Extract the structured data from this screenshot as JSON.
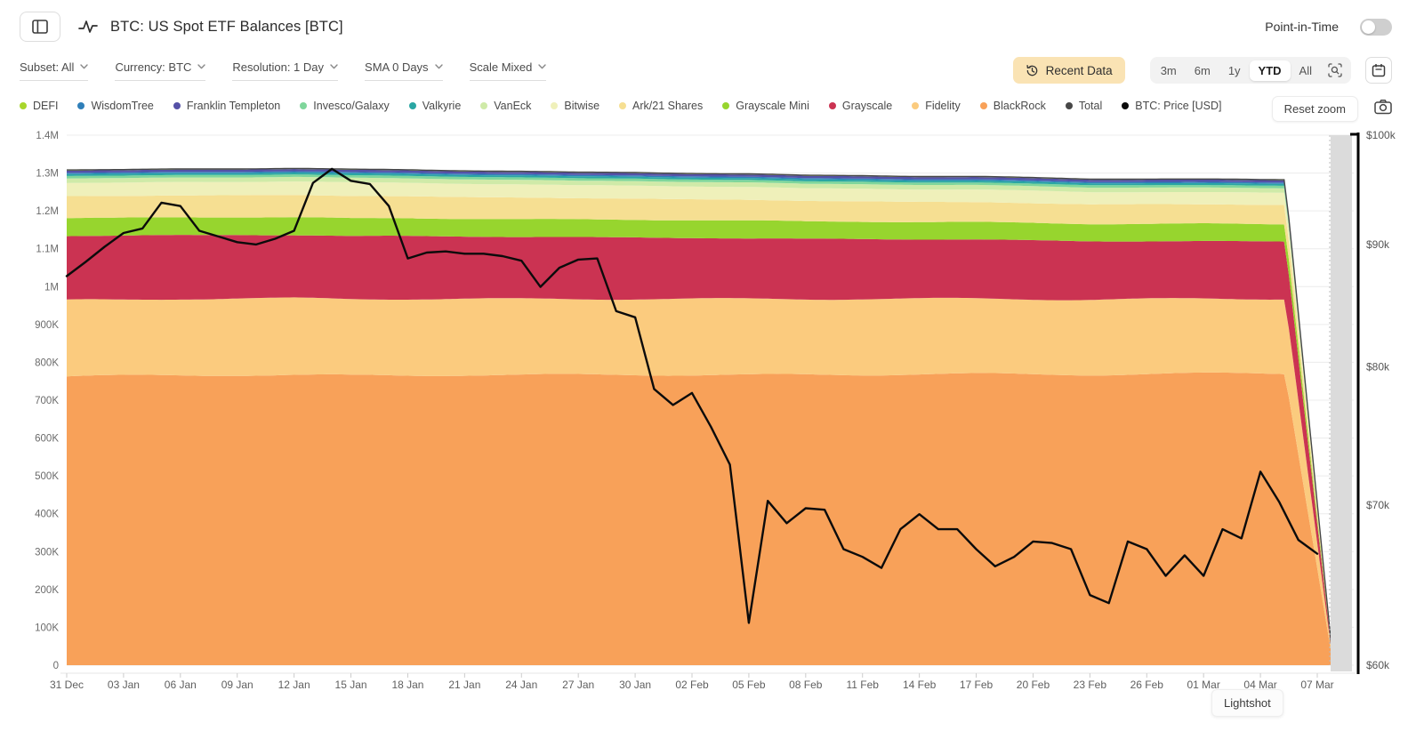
{
  "header": {
    "title": "BTC: US Spot ETF Balances [BTC]",
    "point_in_time_label": "Point-in-Time",
    "point_in_time_enabled": false
  },
  "toolbar": {
    "filters": [
      {
        "label": "Subset: All"
      },
      {
        "label": "Currency: BTC"
      },
      {
        "label": "Resolution: 1 Day"
      },
      {
        "label": "SMA 0 Days"
      },
      {
        "label": "Scale Mixed"
      }
    ],
    "recent_data_label": "Recent Data",
    "ranges": [
      "3m",
      "6m",
      "1y",
      "YTD",
      "All"
    ],
    "active_range": "YTD"
  },
  "legend": {
    "items": [
      {
        "label": "DEFI",
        "color": "#a8d62c"
      },
      {
        "label": "WisdomTree",
        "color": "#2f7fb9"
      },
      {
        "label": "Franklin Templeton",
        "color": "#5551a7"
      },
      {
        "label": "Invesco/Galaxy",
        "color": "#7fd69b"
      },
      {
        "label": "Valkyrie",
        "color": "#2aa6a3"
      },
      {
        "label": "VanEck",
        "color": "#cfeaa8"
      },
      {
        "label": "Bitwise",
        "color": "#eff0ba"
      },
      {
        "label": "Ark/21 Shares",
        "color": "#f6df92"
      },
      {
        "label": "Grayscale Mini",
        "color": "#97d52e"
      },
      {
        "label": "Grayscale",
        "color": "#cb3352"
      },
      {
        "label": "Fidelity",
        "color": "#fbcb7e"
      },
      {
        "label": "BlackRock",
        "color": "#f8a159"
      },
      {
        "label": "Total",
        "color": "#474747"
      },
      {
        "label": "BTC: Price [USD]",
        "color": "#0b0b0b"
      }
    ],
    "reset_zoom_label": "Reset zoom"
  },
  "tooltip": {
    "label": "Lightshot"
  },
  "chart_data": {
    "type": "area",
    "stacking": "stacked",
    "title": "BTC: US Spot ETF Balances [BTC]",
    "x_tick_labels": [
      "31 Dec",
      "03 Jan",
      "06 Jan",
      "09 Jan",
      "12 Jan",
      "15 Jan",
      "18 Jan",
      "21 Jan",
      "24 Jan",
      "27 Jan",
      "30 Jan",
      "02 Feb",
      "05 Feb",
      "08 Feb",
      "11 Feb",
      "14 Feb",
      "17 Feb",
      "20 Feb",
      "23 Feb",
      "26 Feb",
      "01 Mar",
      "04 Mar",
      "07 Mar"
    ],
    "left_axis": {
      "scale": "linear",
      "min": 0,
      "max": 1400000,
      "unit": "BTC",
      "tick_labels": [
        "1.4M",
        "1.3M",
        "1.2M",
        "1.1M",
        "1M",
        "900K",
        "800K",
        "700K",
        "600K",
        "500K",
        "400K",
        "300K",
        "200K",
        "100K",
        "0"
      ],
      "tick_values_thousands": [
        1400,
        1300,
        1200,
        1100,
        1000,
        900,
        800,
        700,
        600,
        500,
        400,
        300,
        200,
        100,
        0
      ]
    },
    "right_axis": {
      "scale": "log",
      "min": 60000,
      "max": 100000,
      "unit": "USD",
      "tick_labels": [
        "$100k",
        "$90k",
        "$80k",
        "$70k",
        "$60k"
      ],
      "tick_values_thousands": [
        100,
        90,
        80,
        70,
        60
      ]
    },
    "series": [
      {
        "name": "BlackRock",
        "color": "#f8a159",
        "values_thousands": [
          763,
          764,
          766,
          767,
          766,
          765,
          766,
          767,
          766,
          767,
          768,
          767,
          766,
          767,
          768,
          769,
          769,
          768,
          768,
          769,
          770,
          771,
          0
        ]
      },
      {
        "name": "Fidelity",
        "color": "#fbcb7e",
        "values_thousands": [
          201,
          201,
          202,
          202,
          203,
          202,
          202,
          201,
          201,
          200,
          200,
          201,
          201,
          200,
          200,
          199,
          199,
          199,
          198,
          198,
          198,
          197,
          0
        ]
      },
      {
        "name": "Grayscale",
        "color": "#cb3352",
        "values_thousands": [
          170,
          169,
          168,
          168,
          167,
          166,
          166,
          165,
          164,
          163,
          162,
          161,
          160,
          159,
          158,
          157,
          156,
          155,
          154,
          153,
          152,
          151,
          0
        ]
      },
      {
        "name": "Grayscale Mini",
        "color": "#97d52e",
        "values_thousands": [
          47,
          47,
          47,
          47,
          47,
          47,
          47,
          47,
          47,
          47,
          47,
          47,
          47,
          46,
          46,
          46,
          46,
          46,
          46,
          46,
          46,
          46,
          0
        ]
      },
      {
        "name": "Ark/21 Shares",
        "color": "#f6df92",
        "values_thousands": [
          58,
          58,
          58,
          58,
          59,
          59,
          58,
          57,
          57,
          56,
          56,
          55,
          55,
          54,
          54,
          53,
          53,
          52,
          52,
          52,
          51,
          51,
          0
        ]
      },
      {
        "name": "Bitwise",
        "color": "#eff0ba",
        "values_thousands": [
          35,
          35,
          35,
          35,
          36,
          36,
          35,
          35,
          35,
          34,
          34,
          34,
          34,
          33,
          33,
          33,
          33,
          33,
          32,
          32,
          32,
          32,
          0
        ]
      },
      {
        "name": "VanEck",
        "color": "#cfeaa8",
        "values_thousands": [
          12,
          12,
          12,
          12,
          12,
          12,
          12,
          12,
          12,
          12,
          12,
          12,
          12,
          12,
          12,
          12,
          12,
          12,
          12,
          12,
          12,
          12,
          0
        ]
      },
      {
        "name": "Invesco/Galaxy",
        "color": "#7fd69b",
        "values_thousands": [
          6.5,
          6.5,
          6.5,
          6.5,
          6.5,
          6.5,
          6.5,
          6.5,
          6.5,
          6.5,
          6.5,
          6.5,
          6.5,
          6.5,
          6.5,
          6.5,
          6.5,
          6.5,
          6.5,
          6.5,
          6.5,
          6.5,
          0
        ]
      },
      {
        "name": "Valkyrie",
        "color": "#2aa6a3",
        "values_thousands": [
          5,
          5,
          5,
          5,
          5,
          5,
          5,
          5,
          5,
          5,
          5,
          5,
          5,
          5,
          5,
          5,
          5,
          5,
          5,
          5,
          5,
          5,
          0
        ]
      },
      {
        "name": "WisdomTree",
        "color": "#2f7fb9",
        "values_thousands": [
          3.5,
          3.5,
          3.5,
          3.5,
          3.5,
          3.5,
          3.5,
          3.5,
          3.5,
          3.5,
          3.5,
          3.5,
          3.5,
          3.5,
          3.5,
          3.5,
          3.5,
          3.5,
          3.5,
          3.5,
          3.5,
          3.5,
          0
        ]
      },
      {
        "name": "Franklin Templeton",
        "color": "#5551a7",
        "values_thousands": [
          6,
          6,
          6,
          6,
          6,
          6,
          6,
          6,
          6,
          6,
          6,
          6,
          6,
          6,
          6,
          6,
          6,
          6,
          6,
          6,
          6,
          6,
          0
        ]
      },
      {
        "name": "DEFI",
        "color": "#a8d62c",
        "values_thousands": [
          1.5,
          1.5,
          1.5,
          1.5,
          1.5,
          1.5,
          1.5,
          1.5,
          1.5,
          1.5,
          1.5,
          1.5,
          1.5,
          1.5,
          1.5,
          1.5,
          1.5,
          1.5,
          1.5,
          1.5,
          1.5,
          1.5,
          0
        ]
      }
    ],
    "total_series": {
      "name": "Total",
      "color": "#474747",
      "description": "sum of stacked series"
    },
    "price_series": {
      "name": "BTC: Price [USD]",
      "color": "#0b0b0b",
      "axis": "right",
      "x_unit": "day",
      "start_label": "31 Dec",
      "values_usd_thousands": [
        87.3,
        88.5,
        89.8,
        91.0,
        91.4,
        93.7,
        93.4,
        91.2,
        90.7,
        90.2,
        90.0,
        90.5,
        91.2,
        95.5,
        96.8,
        95.7,
        95.4,
        93.4,
        88.8,
        89.3,
        89.4,
        89.2,
        89.2,
        89.0,
        88.6,
        86.4,
        88.0,
        88.7,
        88.8,
        84.4,
        83.9,
        78.3,
        77.1,
        78.0,
        75.5,
        72.8,
        62.5,
        70.3,
        68.8,
        69.8,
        69.7,
        67.1,
        66.6,
        65.9,
        68.4,
        69.4,
        68.4,
        68.4,
        67.1,
        66.0,
        66.6,
        67.6,
        67.5,
        67.1,
        64.2,
        63.7,
        67.6,
        67.1,
        65.4,
        66.7,
        65.4,
        68.4,
        67.8,
        72.3,
        70.2,
        67.7,
        66.8
      ]
    }
  }
}
